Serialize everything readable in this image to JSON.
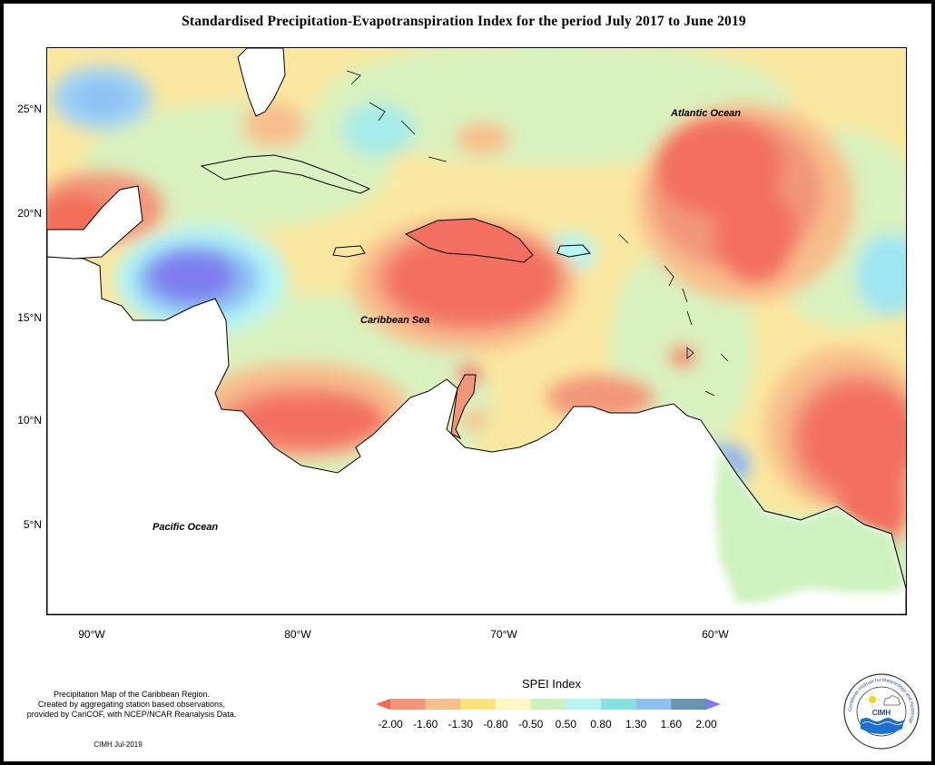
{
  "title": "Standardised Precipitation-Evapotranspiration Index for the period July 2017 to June 2019",
  "axes": {
    "y_ticks": [
      "25°N",
      "20°N",
      "15°N",
      "10°N",
      "5°N"
    ],
    "x_ticks": [
      "90°W",
      "80°W",
      "70°W",
      "60°W"
    ]
  },
  "labels": {
    "atlantic": "Atlantic Ocean",
    "caribbean": "Caribbean Sea",
    "pacific": "Pacific Ocean"
  },
  "legend": {
    "title": "SPEI Index",
    "values": [
      "-2.00",
      "-1.60",
      "-1.30",
      "-0.80",
      "-0.50",
      "0.50",
      "0.80",
      "1.30",
      "1.60",
      "2.00"
    ],
    "colors": [
      "#f2674e",
      "#f2967a",
      "#f7bf8c",
      "#fbe37e",
      "#fdf7c4",
      "#cdf2bf",
      "#b6f6f4",
      "#86e1e0",
      "#8ec0f2",
      "#6a95b2",
      "#7f7ef0"
    ]
  },
  "caption": {
    "line1": "Precipitation Map of the Caribbean Region.",
    "line2": "Created by aggregating station based observations,",
    "line3": "provided by CariCOF, with NCEP/NCAR Reanalysis Data.",
    "credit": "CIMH Jul-2019"
  },
  "logo": {
    "text": "CIMH",
    "ring_text": "Caribbean Institute for Meteorology and Hydrology"
  }
}
